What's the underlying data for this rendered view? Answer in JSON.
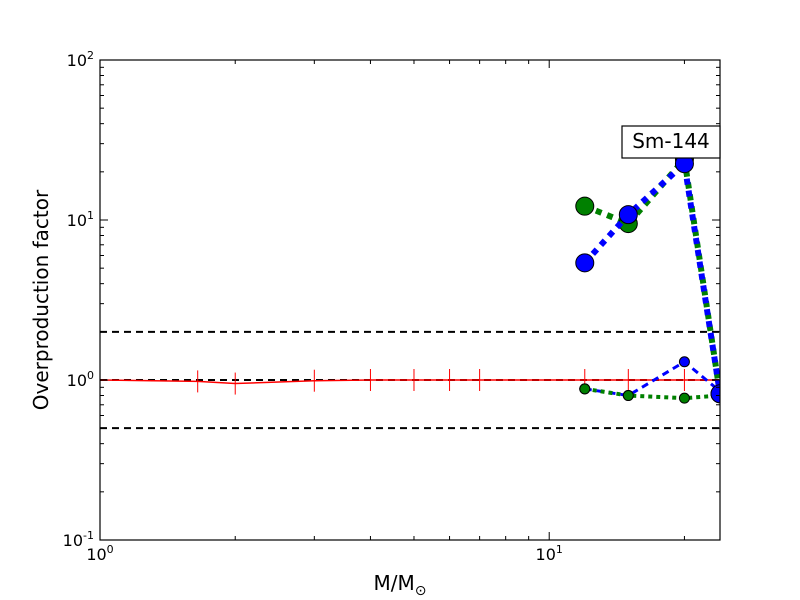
{
  "chart_data": {
    "type": "line",
    "xscale": "log",
    "yscale": "log",
    "xlim": [
      1,
      24
    ],
    "ylim": [
      0.1,
      100
    ],
    "xlabel": "M/M",
    "xlabel_sub": "⊙",
    "ylabel": "Overproduction factor",
    "x_ticks": [
      {
        "value": 1,
        "base": "10",
        "exp": "0"
      },
      {
        "value": 10,
        "base": "10",
        "exp": "1"
      }
    ],
    "y_ticks": [
      {
        "value": 0.1,
        "base": "10",
        "exp": "-1"
      },
      {
        "value": 1,
        "base": "10",
        "exp": "0"
      },
      {
        "value": 10,
        "base": "10",
        "exp": "1"
      },
      {
        "value": 100,
        "base": "10",
        "exp": "2"
      }
    ],
    "annotation": "Sm-144",
    "reference_lines": [
      {
        "y": 2,
        "style": "dashed",
        "color": "#000000"
      },
      {
        "y": 1,
        "style": "dashed",
        "color": "#000000"
      },
      {
        "y": 0.5,
        "style": "dashed",
        "color": "#000000"
      }
    ],
    "series": [
      {
        "color": "#ff0000",
        "style": "solid",
        "width": 1.5,
        "marker": "vline",
        "x": [
          1,
          1.65,
          2,
          3,
          4,
          5,
          6,
          7,
          12,
          15,
          20,
          24
        ],
        "y": [
          1.0,
          0.98,
          0.95,
          0.99,
          1.0,
          1.0,
          1.0,
          1.0,
          1.0,
          1.0,
          1.0,
          1.0
        ]
      },
      {
        "color": "#008000",
        "style": "dotted",
        "width": 6,
        "marker": "circle",
        "marker_size": 9,
        "x": [
          12,
          15,
          20,
          24
        ],
        "y": [
          12.2,
          9.5,
          24.0,
          0.82
        ]
      },
      {
        "color": "#0000ff",
        "style": "dotted",
        "width": 6,
        "marker": "circle",
        "marker_size": 9,
        "x": [
          12,
          15,
          20,
          24
        ],
        "y": [
          5.4,
          10.8,
          22.5,
          0.82
        ]
      },
      {
        "color": "#008000",
        "style": "dotted",
        "width": 4,
        "marker": "circle",
        "marker_size": 5,
        "x": [
          12,
          15,
          20,
          24
        ],
        "y": [
          0.88,
          0.8,
          0.77,
          0.8
        ]
      },
      {
        "color": "#0000ff",
        "style": "dashed",
        "width": 3,
        "marker": "circle",
        "marker_size": 5,
        "x": [
          12,
          15,
          20,
          24
        ],
        "y": [
          0.88,
          0.8,
          1.3,
          0.85
        ]
      }
    ]
  }
}
